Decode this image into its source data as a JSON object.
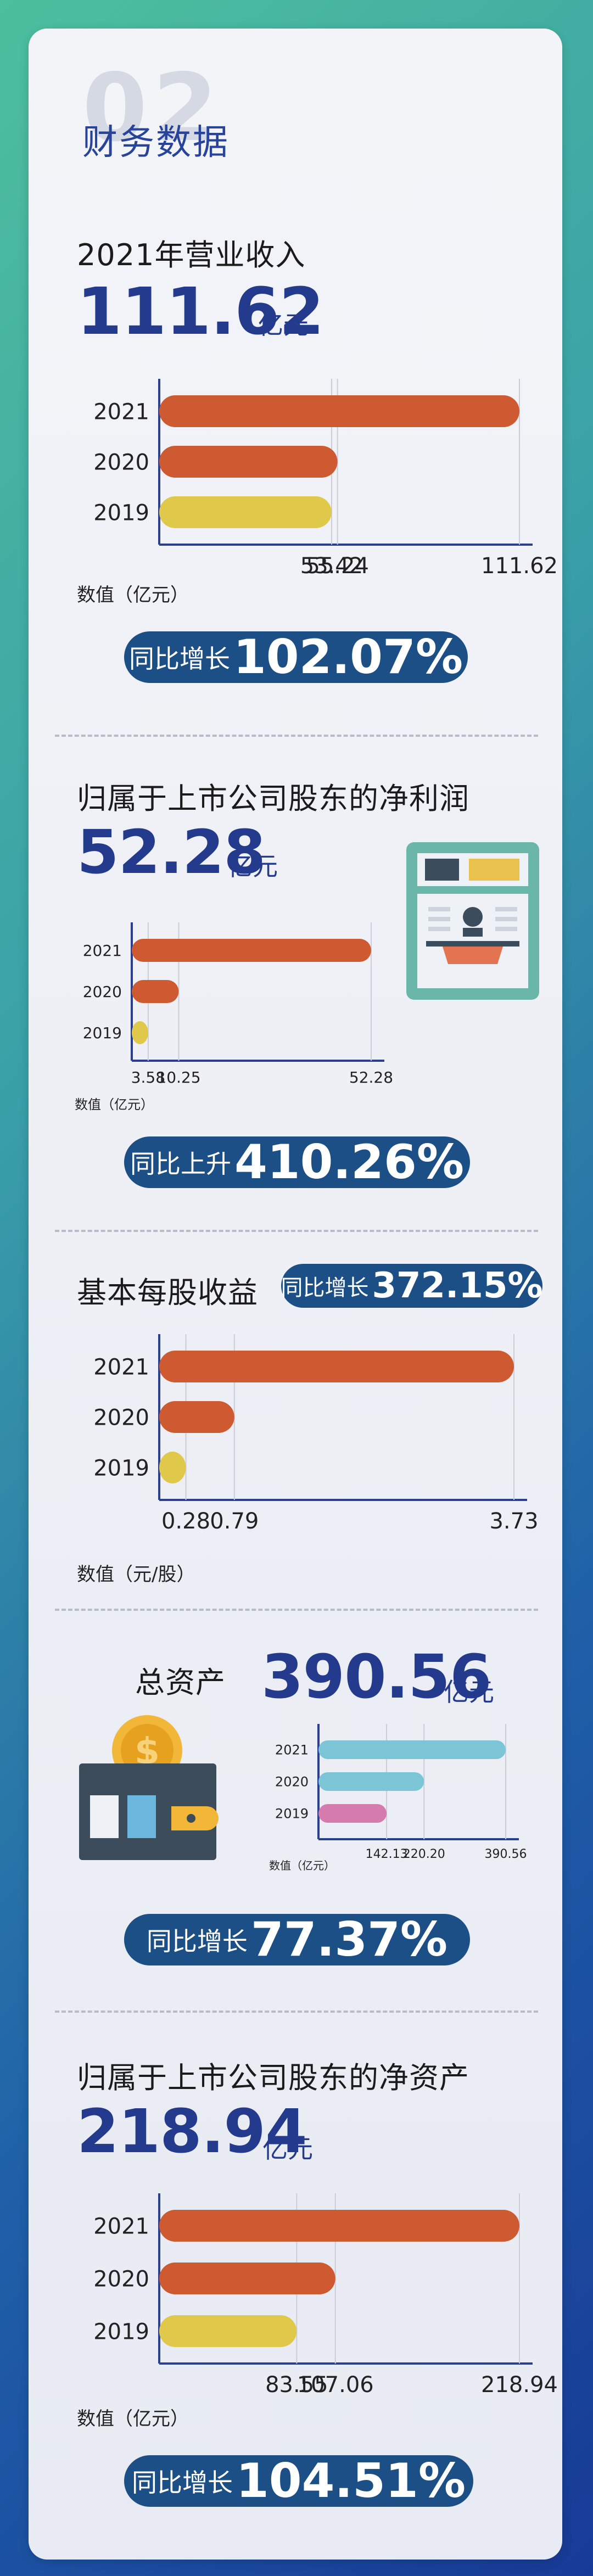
{
  "header": {
    "section_number": "02",
    "title": "财务数据"
  },
  "colors": {
    "bar_2021": "#cd5a30",
    "bar_2020": "#cd5a30",
    "bar_2019": "#e0c84a",
    "assets_2021": "#7cc5d6",
    "assets_2020": "#7cc5d6",
    "assets_2019": "#d57bae",
    "navy": "#243a8c",
    "pill": "#1c4f86"
  },
  "revenue": {
    "title": "2021年营业收入",
    "value": "111.62",
    "unit": "亿元",
    "axis_label": "数值（亿元）",
    "growth_label": "同比增长",
    "growth_value": "102.07%",
    "chart_data": {
      "type": "bar",
      "orientation": "horizontal",
      "categories": [
        "2021",
        "2020",
        "2019"
      ],
      "values": [
        111.62,
        55.24,
        53.42
      ],
      "tick_labels": [
        "53.42",
        "55.24",
        "111.62"
      ],
      "xlim": [
        0,
        120
      ]
    }
  },
  "net_profit": {
    "title": "归属于上市公司股东的净利润",
    "value": "52.28",
    "unit": "亿元",
    "axis_label": "数值（亿元）",
    "growth_label": "同比上升",
    "growth_value": "410.26%",
    "chart_data": {
      "type": "bar",
      "orientation": "horizontal",
      "categories": [
        "2021",
        "2020",
        "2019"
      ],
      "values": [
        52.28,
        10.25,
        3.58
      ],
      "tick_labels": [
        "3.58",
        "10.25",
        "52.28"
      ],
      "xlim": [
        0,
        58
      ]
    }
  },
  "eps": {
    "title": "基本每股收益",
    "axis_label": "数值（元/股）",
    "growth_label": "同比增长",
    "growth_value": "372.15%",
    "chart_data": {
      "type": "bar",
      "orientation": "horizontal",
      "categories": [
        "2021",
        "2020",
        "2019"
      ],
      "values": [
        3.73,
        0.79,
        0.28
      ],
      "tick_labels": [
        "0.28",
        "0.79",
        "3.73"
      ],
      "xlim": [
        0,
        4
      ]
    }
  },
  "total_assets": {
    "title": "总资产",
    "value": "390.56",
    "unit": "亿元",
    "axis_label": "数值（亿元）",
    "growth_label": "同比增长",
    "growth_value": "77.37%",
    "chart_data": {
      "type": "bar",
      "orientation": "horizontal",
      "categories": [
        "2021",
        "2020",
        "2019"
      ],
      "values": [
        390.56,
        220.2,
        142.13
      ],
      "tick_labels": [
        "142.13",
        "220.20",
        "390.56"
      ],
      "xlim": [
        0,
        420
      ]
    }
  },
  "net_assets": {
    "title": "归属于上市公司股东的净资产",
    "value": "218.94",
    "unit": "亿元",
    "axis_label": "数值（亿元）",
    "growth_label": "同比增长",
    "growth_value": "104.51%",
    "chart_data": {
      "type": "bar",
      "orientation": "horizontal",
      "categories": [
        "2021",
        "2020",
        "2019"
      ],
      "values": [
        218.94,
        107.06,
        83.55
      ],
      "tick_labels": [
        "83.55",
        "107.06",
        "218.94"
      ],
      "xlim": [
        0,
        240
      ]
    }
  }
}
